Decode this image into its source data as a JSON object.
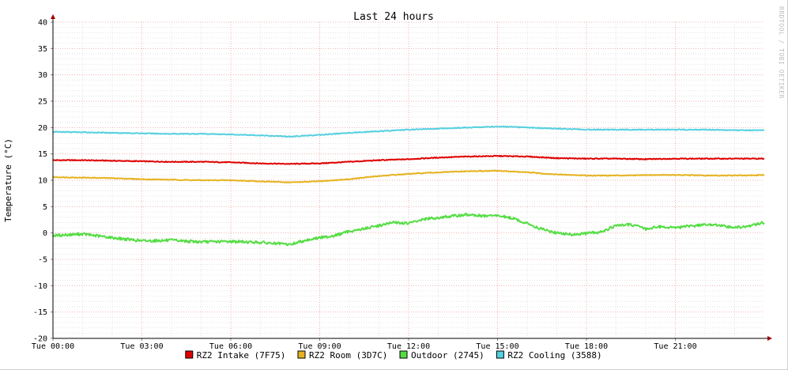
{
  "chart_data": {
    "type": "line",
    "title": "Last 24 hours",
    "ylabel": "Temperature (°C)",
    "xlabel": "",
    "watermark": "RRDTOOL / TOBI OETIKER",
    "ylim": [
      -20,
      40
    ],
    "xlim": [
      0,
      24
    ],
    "y_ticks": [
      "-20",
      "-15",
      "-10",
      "-5",
      "0",
      "5",
      "10",
      "15",
      "20",
      "25",
      "30",
      "35",
      "40"
    ],
    "x_ticks": [
      "Tue 00:00",
      "Tue 03:00",
      "Tue 06:00",
      "Tue 09:00",
      "Tue 12:00",
      "Tue 15:00",
      "Tue 18:00",
      "Tue 21:00"
    ],
    "grid": true,
    "legend_position": "bottom",
    "series": [
      {
        "name": "RZ2 Intake (7F75)",
        "color": "#e00000",
        "x": [
          0,
          1,
          2,
          3,
          4,
          5,
          6,
          7,
          8,
          9,
          10,
          11,
          12,
          13,
          14,
          15,
          16,
          17,
          18,
          19,
          20,
          21,
          22,
          23,
          24
        ],
        "values": [
          13.8,
          13.8,
          13.7,
          13.6,
          13.5,
          13.5,
          13.4,
          13.2,
          13.1,
          13.2,
          13.5,
          13.8,
          14.0,
          14.3,
          14.5,
          14.6,
          14.5,
          14.2,
          14.1,
          14.1,
          14.0,
          14.1,
          14.1,
          14.1,
          14.1
        ]
      },
      {
        "name": "RZ2 Room (3D7C)",
        "color": "#e6b220",
        "x": [
          0,
          1,
          2,
          3,
          4,
          5,
          6,
          7,
          8,
          9,
          10,
          11,
          12,
          13,
          14,
          15,
          16,
          17,
          18,
          19,
          20,
          21,
          22,
          23,
          24
        ],
        "values": [
          10.6,
          10.5,
          10.4,
          10.2,
          10.1,
          10.0,
          10.0,
          9.8,
          9.6,
          9.8,
          10.2,
          10.8,
          11.2,
          11.5,
          11.7,
          11.8,
          11.5,
          11.1,
          10.9,
          10.9,
          11.0,
          11.0,
          10.9,
          10.9,
          11.0
        ]
      },
      {
        "name": "Outdoor (2745)",
        "color": "#55dd44",
        "x": [
          0,
          1,
          2,
          3,
          4,
          5,
          6,
          7,
          8,
          8.5,
          9,
          9.5,
          10,
          10.5,
          11,
          11.5,
          12,
          12.5,
          13,
          13.5,
          14,
          14.5,
          15,
          15.5,
          16,
          16.5,
          17,
          17.5,
          18,
          18.5,
          19,
          19.5,
          20,
          20.5,
          21,
          21.5,
          22,
          22.5,
          23,
          23.5,
          24
        ],
        "values": [
          -0.5,
          -0.2,
          -0.9,
          -1.5,
          -1.4,
          -1.7,
          -1.6,
          -1.8,
          -2.2,
          -1.4,
          -0.9,
          -0.5,
          0.3,
          0.8,
          1.4,
          2.0,
          1.8,
          2.6,
          2.9,
          3.2,
          3.5,
          3.2,
          3.3,
          2.8,
          1.8,
          0.7,
          0.0,
          -0.3,
          -0.1,
          0.2,
          1.4,
          1.6,
          0.8,
          1.2,
          1.0,
          1.3,
          1.6,
          1.4,
          1.0,
          1.3,
          2.0
        ]
      },
      {
        "name": "RZ2 Cooling (3588)",
        "color": "#55d0e0",
        "x": [
          0,
          1,
          2,
          3,
          4,
          5,
          6,
          7,
          8,
          9,
          10,
          11,
          12,
          13,
          14,
          15,
          16,
          17,
          18,
          19,
          20,
          21,
          22,
          23,
          24
        ],
        "values": [
          19.2,
          19.1,
          19.0,
          18.9,
          18.8,
          18.8,
          18.7,
          18.5,
          18.3,
          18.6,
          19.0,
          19.3,
          19.6,
          19.8,
          20.0,
          20.2,
          20.0,
          19.8,
          19.6,
          19.6,
          19.6,
          19.6,
          19.6,
          19.5,
          19.5
        ]
      }
    ]
  }
}
